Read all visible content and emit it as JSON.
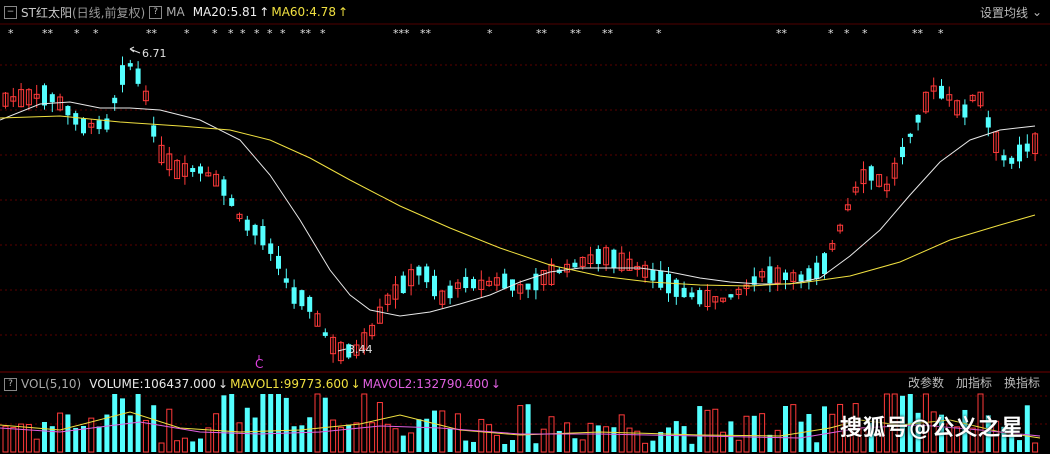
{
  "header": {
    "stock_name": "ST红太阳",
    "period_info": "(日线,前复权)",
    "help_glyph": "?",
    "ma_label": "MA",
    "ma20_text": "MA20:5.81",
    "ma60_text": "MA60:4.78",
    "settings_label": "设置均线"
  },
  "volume_header": {
    "vol_label": "VOL(5,10)",
    "volume_text": "VOLUME:106437.000",
    "mavol1_text": "MAVOL1:99773.600",
    "mavol2_text": "MAVOL2:132790.400",
    "buttons": [
      "改参数",
      "加指标",
      "换指标"
    ]
  },
  "colors": {
    "up": "#ff3a3a",
    "down": "#54ffff",
    "ma20": "#e8e8e8",
    "ma60": "#f0e040",
    "vol_ma5": "#f0e040",
    "vol_ma10": "#e060e0",
    "grid": "#5a0000",
    "marker": "#e040e0"
  },
  "chart_data": {
    "type": "candlestick",
    "price_range": [
      3.0,
      7.1
    ],
    "annotations": {
      "high": "6.71",
      "low": "3.44",
      "signal_mark": "C"
    },
    "star_marks": [
      "*",
      "**",
      "*",
      "*",
      "**",
      "*",
      "*",
      "*",
      "*",
      "*",
      "*",
      "*",
      "**",
      "*",
      "***",
      "**",
      "*",
      "**",
      "**",
      "**",
      "*",
      "**",
      "*",
      "*",
      "*",
      "**",
      "*"
    ],
    "watermark": "搜狐号@公义之星"
  }
}
